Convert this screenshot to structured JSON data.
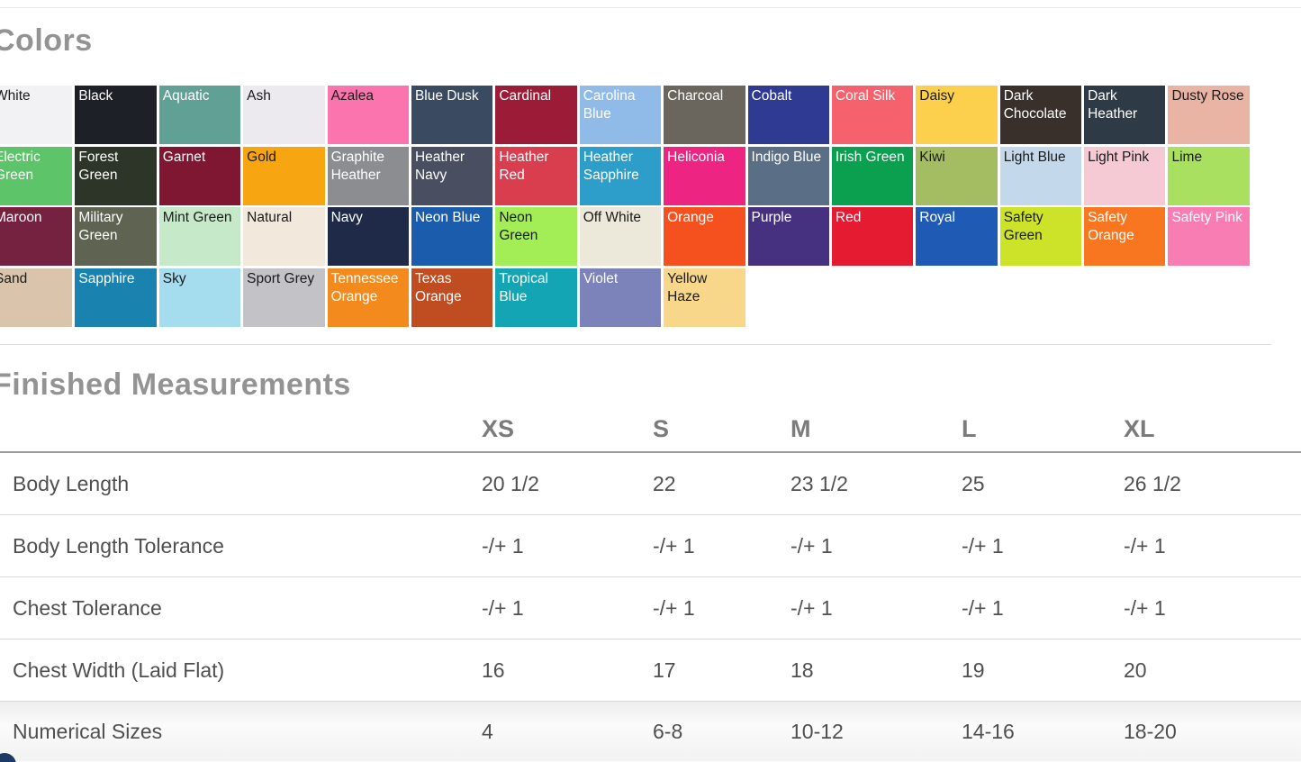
{
  "colors_section": {
    "title": "Colors",
    "swatches": [
      {
        "name": "White",
        "color": "#f2f1f3",
        "text": "#1a1a1a"
      },
      {
        "name": "Black",
        "color": "#1e2027",
        "text": "#ffffff"
      },
      {
        "name": "Aquatic",
        "color": "#61a095",
        "text": "#ffffff"
      },
      {
        "name": "Ash",
        "color": "#eceaee",
        "text": "#1a1a1a"
      },
      {
        "name": "Azalea",
        "color": "#fc74ad",
        "text": "#1a1a1a"
      },
      {
        "name": "Blue Dusk",
        "color": "#3a4a60",
        "text": "#ffffff"
      },
      {
        "name": "Cardinal",
        "color": "#9c1c38",
        "text": "#ffffff"
      },
      {
        "name": "Carolina Blue",
        "color": "#90bbe8",
        "text": "#ffffff"
      },
      {
        "name": "Charcoal",
        "color": "#6a665e",
        "text": "#ffffff"
      },
      {
        "name": "Cobalt",
        "color": "#2f3a93",
        "text": "#ffffff"
      },
      {
        "name": "Coral Silk",
        "color": "#f6616e",
        "text": "#ffffff"
      },
      {
        "name": "Daisy",
        "color": "#fcd04d",
        "text": "#1a1a1a"
      },
      {
        "name": "Dark Chocolate",
        "color": "#39302b",
        "text": "#ffffff"
      },
      {
        "name": "Dark Heather",
        "color": "#2e3a46",
        "text": "#ffffff"
      },
      {
        "name": "Dusty Rose",
        "color": "#e9b4a4",
        "text": "#1a1a1a"
      },
      {
        "name": "Electric Green",
        "color": "#5ec46a",
        "text": "#ffffff"
      },
      {
        "name": "Forest Green",
        "color": "#2c3527",
        "text": "#ffffff"
      },
      {
        "name": "Garnet",
        "color": "#7f1632",
        "text": "#ffffff"
      },
      {
        "name": "Gold",
        "color": "#f7a510",
        "text": "#1a1a1a"
      },
      {
        "name": "Graphite Heather",
        "color": "#8b8d91",
        "text": "#ffffff"
      },
      {
        "name": "Heather Navy",
        "color": "#494e60",
        "text": "#ffffff"
      },
      {
        "name": "Heather Red",
        "color": "#d93e4f",
        "text": "#ffffff"
      },
      {
        "name": "Heather Sapphire",
        "color": "#2d9dc9",
        "text": "#ffffff"
      },
      {
        "name": "Heliconia",
        "color": "#ee2483",
        "text": "#ffffff"
      },
      {
        "name": "Indigo Blue",
        "color": "#5a6e85",
        "text": "#ffffff"
      },
      {
        "name": "Irish Green",
        "color": "#0aa04f",
        "text": "#ffffff"
      },
      {
        "name": "Kiwi",
        "color": "#a5bd62",
        "text": "#1a1a1a"
      },
      {
        "name": "Light Blue",
        "color": "#c4d8eb",
        "text": "#1a1a1a"
      },
      {
        "name": "Light Pink",
        "color": "#f5cad5",
        "text": "#1a1a1a"
      },
      {
        "name": "Lime",
        "color": "#a9e05f",
        "text": "#1a1a1a"
      },
      {
        "name": "Maroon",
        "color": "#752240",
        "text": "#ffffff"
      },
      {
        "name": "Military Green",
        "color": "#5f6351",
        "text": "#ffffff"
      },
      {
        "name": "Mint Green",
        "color": "#c6e9c9",
        "text": "#1a1a1a"
      },
      {
        "name": "Natural",
        "color": "#f2e8db",
        "text": "#1a1a1a"
      },
      {
        "name": "Navy",
        "color": "#1e2a47",
        "text": "#ffffff"
      },
      {
        "name": "Neon Blue",
        "color": "#1b5cac",
        "text": "#ffffff"
      },
      {
        "name": "Neon Green",
        "color": "#a3ee57",
        "text": "#1a1a1a"
      },
      {
        "name": "Off White",
        "color": "#ece8da",
        "text": "#1a1a1a"
      },
      {
        "name": "Orange",
        "color": "#f4511e",
        "text": "#ffffff"
      },
      {
        "name": "Purple",
        "color": "#463181",
        "text": "#ffffff"
      },
      {
        "name": "Red",
        "color": "#e51b32",
        "text": "#ffffff"
      },
      {
        "name": "Royal",
        "color": "#1f5bb5",
        "text": "#ffffff"
      },
      {
        "name": "Safety Green",
        "color": "#cde32a",
        "text": "#1a1a1a"
      },
      {
        "name": "Safety Orange",
        "color": "#f7761f",
        "text": "#ffffff"
      },
      {
        "name": "Safety Pink",
        "color": "#f77db3",
        "text": "#ffffff"
      },
      {
        "name": "Sand",
        "color": "#dac4ac",
        "text": "#1a1a1a"
      },
      {
        "name": "Sapphire",
        "color": "#1a82ae",
        "text": "#ffffff"
      },
      {
        "name": "Sky",
        "color": "#a6ddee",
        "text": "#1a1a1a"
      },
      {
        "name": "Sport Grey",
        "color": "#c3c3c7",
        "text": "#1a1a1a"
      },
      {
        "name": "Tennessee Orange",
        "color": "#f28a1e",
        "text": "#ffffff"
      },
      {
        "name": "Texas Orange",
        "color": "#bf4d21",
        "text": "#ffffff"
      },
      {
        "name": "Tropical Blue",
        "color": "#14a5b4",
        "text": "#ffffff"
      },
      {
        "name": "Violet",
        "color": "#7c82ba",
        "text": "#ffffff"
      },
      {
        "name": "Yellow Haze",
        "color": "#f8d68a",
        "text": "#1a1a1a"
      }
    ]
  },
  "measurements_section": {
    "title": "Finished Measurements",
    "columns": [
      "XS",
      "S",
      "M",
      "L",
      "XL"
    ],
    "rows": [
      {
        "label": "Body Length",
        "values": [
          "20 1/2",
          "22",
          "23 1/2",
          "25",
          "26 1/2"
        ]
      },
      {
        "label": "Body Length Tolerance",
        "values": [
          "-/+ 1",
          "-/+ 1",
          "-/+ 1",
          "-/+ 1",
          "-/+ 1"
        ]
      },
      {
        "label": "Chest Tolerance",
        "values": [
          "-/+ 1",
          "-/+ 1",
          "-/+ 1",
          "-/+ 1",
          "-/+ 1"
        ]
      },
      {
        "label": "Chest Width (Laid Flat)",
        "values": [
          "16",
          "17",
          "18",
          "19",
          "20"
        ]
      },
      {
        "label": "Numerical Sizes",
        "values": [
          "4",
          "6-8",
          "10-12",
          "14-16",
          "18-20"
        ]
      }
    ]
  }
}
